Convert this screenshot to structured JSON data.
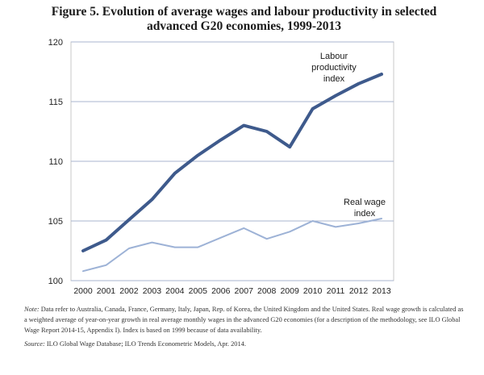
{
  "figure": {
    "title_line1": "Figure 5.  Evolution of average wages and labour productivity in selected",
    "title_line2": "advanced G20 economies, 1999-2013"
  },
  "chart_data": {
    "type": "line",
    "title": "Evolution of average wages and labour productivity in selected advanced G20 economies, 1999-2013",
    "xlabel": "",
    "ylabel": "",
    "x": [
      2000,
      2001,
      2002,
      2003,
      2004,
      2005,
      2006,
      2007,
      2008,
      2009,
      2010,
      2011,
      2012,
      2013
    ],
    "ylim": [
      100,
      120
    ],
    "yticks": [
      100,
      105,
      110,
      115,
      120
    ],
    "grid": true,
    "series": [
      {
        "name": "Labour productivity index",
        "label_lines": [
          "Labour",
          "productivity",
          "index"
        ],
        "color": "#3e5a8c",
        "values": [
          102.5,
          103.4,
          105.1,
          106.8,
          109.0,
          110.5,
          111.8,
          113.0,
          112.5,
          111.2,
          114.4,
          115.5,
          116.5,
          117.3
        ]
      },
      {
        "name": "Real wage index",
        "label_lines": [
          "Real wage",
          "index"
        ],
        "color": "#9db2d6",
        "values": [
          100.8,
          101.3,
          102.7,
          103.2,
          102.8,
          102.8,
          103.6,
          104.4,
          103.5,
          104.1,
          105.0,
          104.5,
          104.8,
          105.2
        ]
      }
    ]
  },
  "notes": {
    "note_label": "Note:",
    "note_text": "Data refer to Australia, Canada, France, Germany, Italy, Japan, Rep. of Korea, the United Kingdom and the United States. Real wage growth is calculated as a weighted average of year-on-year growth in real average monthly wages in the advanced G20 economies (for a description of the methodology, see ILO Global Wage Report 2014-15, Appendix I). Index is based on 1999 because of data availability.",
    "source_label": "Source:",
    "source_text": "ILO Global Wage Database; ILO Trends Econometric Models, Apr. 2014."
  }
}
